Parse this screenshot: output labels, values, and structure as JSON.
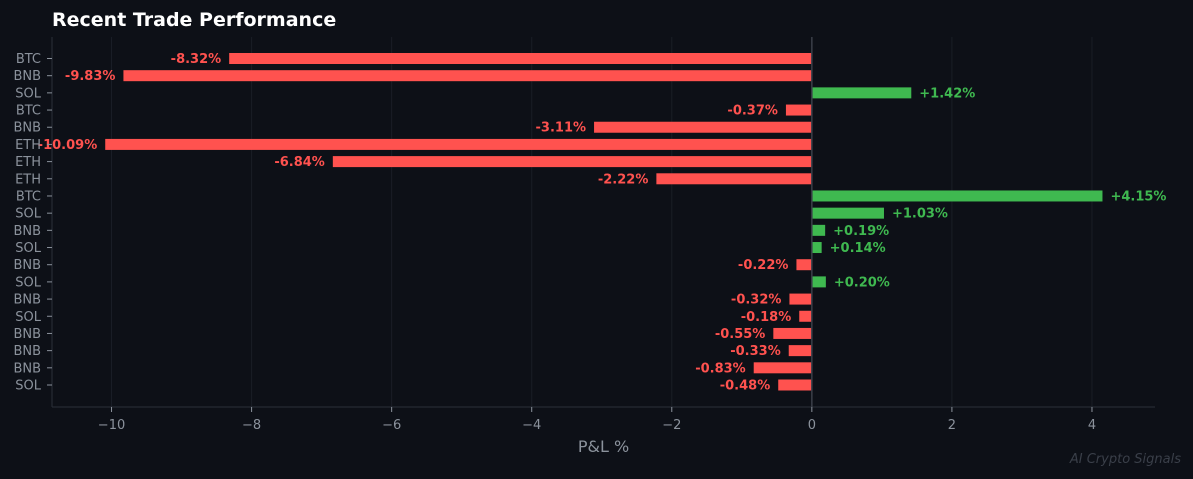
{
  "chart_data": {
    "type": "bar",
    "orientation": "horizontal",
    "title": "Recent Trade Performance",
    "xlabel": "P&L %",
    "ylabel": "",
    "xlim": [
      -10.85,
      4.9
    ],
    "xticks": [
      -10,
      -8,
      -6,
      -4,
      -2,
      0,
      2,
      4
    ],
    "xtick_labels": [
      "−10",
      "−8",
      "−6",
      "−4",
      "−2",
      "0",
      "2",
      "4"
    ],
    "grid": "vertical, faint",
    "categories": [
      "BTC",
      "BNB",
      "SOL",
      "BTC",
      "BNB",
      "ETH",
      "ETH",
      "ETH",
      "BTC",
      "SOL",
      "BNB",
      "SOL",
      "BNB",
      "SOL",
      "BNB",
      "SOL",
      "BNB",
      "BNB",
      "BNB",
      "SOL"
    ],
    "values": [
      -8.32,
      -9.83,
      1.42,
      -0.37,
      -3.11,
      -10.09,
      -6.84,
      -2.22,
      4.15,
      1.03,
      0.19,
      0.14,
      -0.22,
      0.2,
      -0.32,
      -0.18,
      -0.55,
      -0.33,
      -0.83,
      -0.48
    ],
    "data_labels": [
      "-8.32%",
      "-9.83%",
      "+1.42%",
      "-0.37%",
      "-3.11%",
      "-10.09%",
      "-6.84%",
      "-2.22%",
      "+4.15%",
      "+1.03%",
      "+0.19%",
      "+0.14%",
      "-0.22%",
      "+0.20%",
      "-0.32%",
      "-0.18%",
      "-0.55%",
      "-0.33%",
      "-0.83%",
      "-0.48%"
    ],
    "colors": {
      "positive": "#3fb950",
      "negative": "#ff524f",
      "background": "#0d1017",
      "text": "#8b929c"
    }
  },
  "watermark": "AI Crypto Signals"
}
